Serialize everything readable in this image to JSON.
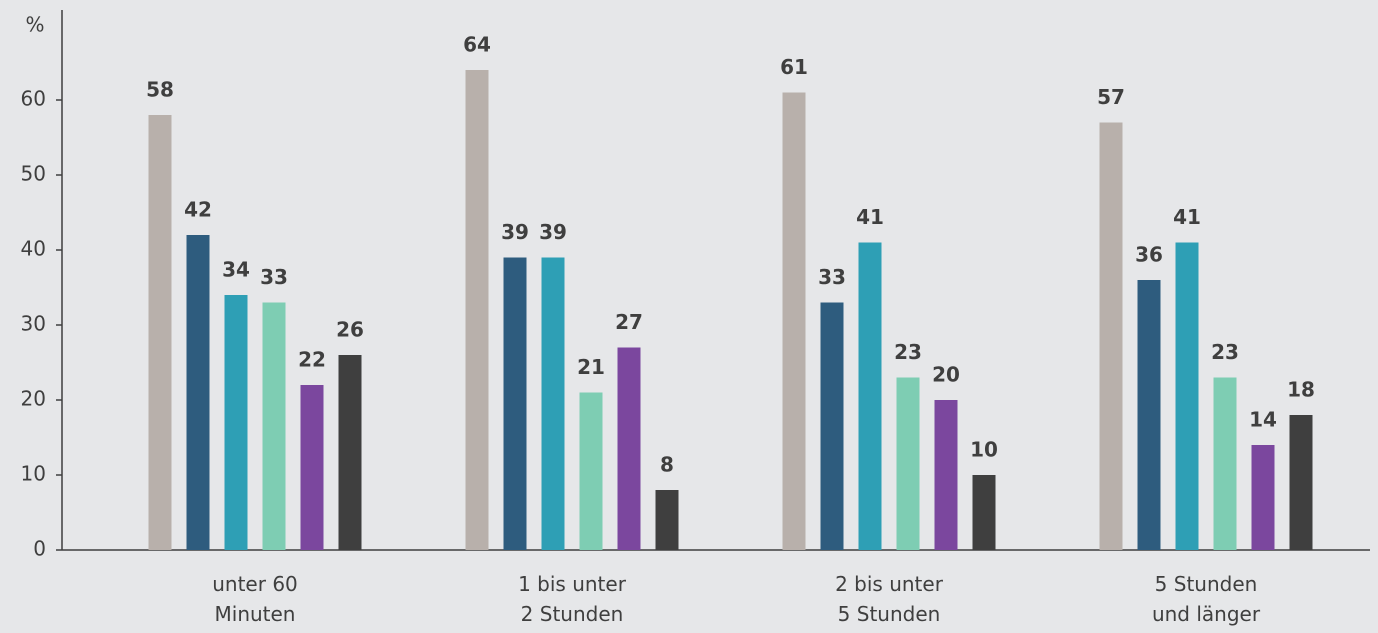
{
  "chart_data": {
    "type": "bar",
    "ylabel": "%",
    "categories": [
      [
        "unter 60",
        "Minuten"
      ],
      [
        "1 bis unter",
        "2 Stunden"
      ],
      [
        "2 bis unter",
        "5 Stunden"
      ],
      [
        "5 Stunden",
        "und länger"
      ]
    ],
    "series": [
      {
        "color": "#b8b0ab",
        "values": [
          58,
          64,
          61,
          57
        ]
      },
      {
        "color": "#2e5c7e",
        "values": [
          42,
          39,
          33,
          36
        ]
      },
      {
        "color": "#2e9fb5",
        "values": [
          34,
          39,
          41,
          41
        ]
      },
      {
        "color": "#7ecdb3",
        "values": [
          33,
          21,
          23,
          23
        ]
      },
      {
        "color": "#7b479e",
        "values": [
          22,
          27,
          20,
          14
        ]
      },
      {
        "color": "#3f3f3f",
        "values": [
          26,
          8,
          10,
          18
        ]
      }
    ],
    "ylim": [
      0,
      72
    ],
    "yticks": [
      0,
      10,
      20,
      30,
      40,
      50,
      60
    ]
  }
}
